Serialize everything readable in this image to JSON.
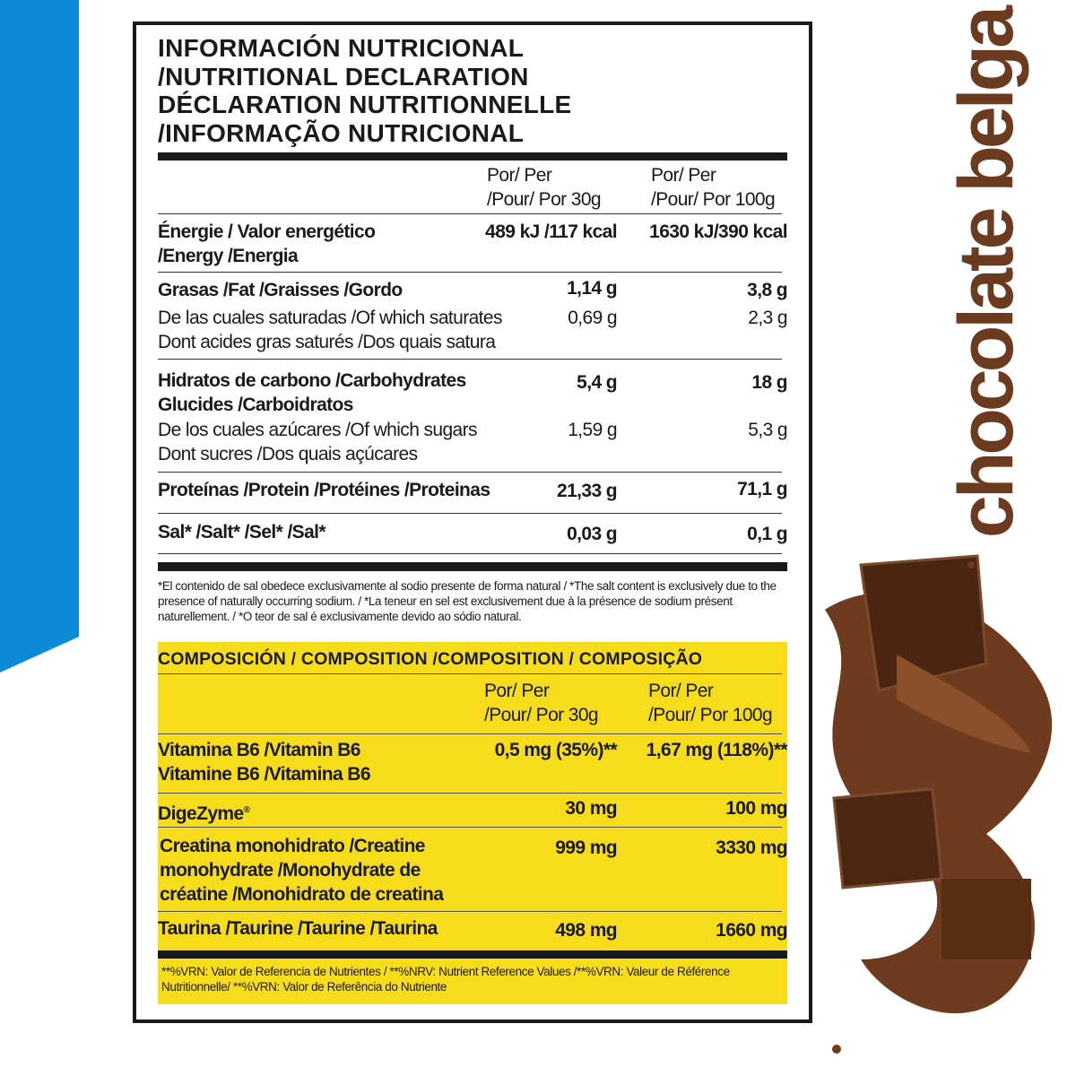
{
  "title_lines": [
    "INFORMACIÓN NUTRICIONAL",
    "/NUTRITIONAL DECLARATION",
    "DÉCLARATION NUTRITIONNELLE",
    "/INFORMAÇÃO NUTRICIONAL"
  ],
  "nutrition": {
    "header": {
      "col1": [
        "Por/ Per",
        "/Pour/ Por 30g"
      ],
      "col2": [
        "Por/ Per",
        "/Pour/ Por 100g"
      ]
    },
    "energy": {
      "label": [
        "Énergie / Valor energético",
        "/Energy /Energia"
      ],
      "v30": "489 kJ /117 kcal",
      "v100": "1630 kJ/390 kcal"
    },
    "fat": {
      "label": "Grasas /Fat /Graisses /Gordo",
      "v30": "1,14 g",
      "v100": "3,8 g"
    },
    "saturates": {
      "label": [
        "De las cuales saturadas /Of which saturates",
        "Dont acides gras saturés /Dos quais satura"
      ],
      "v30": "0,69 g",
      "v100": "2,3 g"
    },
    "carbs": {
      "label": [
        "Hidratos de carbono /Carbohydrates",
        "Glucides /Carboidratos"
      ],
      "v30": "5,4 g",
      "v100": "18 g"
    },
    "sugars": {
      "label": [
        "De los cuales azúcares /Of which sugars",
        "Dont sucres /Dos quais açúcares"
      ],
      "v30": "1,59 g",
      "v100": "5,3 g"
    },
    "protein": {
      "label": "Proteínas /Protein /Protéines /Proteinas",
      "v30": "21,33 g",
      "v100": "71,1 g"
    },
    "salt": {
      "label": "Sal* /Salt* /Sel* /Sal*",
      "v30": "0,03 g",
      "v100": "0,1 g"
    },
    "footnote": "*El contenido de sal obedece exclusivamente al sodio presente de forma natural / *The salt content is exclusively due to the presence of naturally occurring sodium. / *La teneur en sel est exclusivement due à la présence de sodium présent naturellement. / *O teor de sal é exclusivamente devido ao sódio natural."
  },
  "composition": {
    "title": "COMPOSICIÓN / COMPOSITION /COMPOSITION / COMPOSIÇÃO",
    "header": {
      "col1": [
        "Por/ Per",
        "/Pour/ Por 30g"
      ],
      "col2": [
        "Por/ Per",
        "/Pour/ Por 100g"
      ]
    },
    "b6": {
      "label": [
        "Vitamina B6 /Vitamin B6",
        "Vitamine B6 /Vitamina B6"
      ],
      "v30": "0,5 mg (35%)**",
      "v100": "1,67 mg (118%)**"
    },
    "digezyme": {
      "label": "DigeZyme",
      "mark": "®",
      "v30": "30 mg",
      "v100": "100 mg"
    },
    "creatine": {
      "label": [
        "Creatina monohidrato /Creatine",
        "monohydrate /Monohydrate de",
        "créatine /Monohidrato de creatina"
      ],
      "v30": "999 mg",
      "v100": "3330 mg"
    },
    "taurine": {
      "label": "Taurina /Taurine /Taurine /Taurina",
      "v30": "498 mg",
      "v100": "1660 mg"
    },
    "footnote": "**%VRN: Valor de Referencia de Nutrientes / **%NRV: Nutrient Reference Values /**%VRN: Valeur de Référence Nutritionnelle/ **%VRN: Valor de Referência do Nutriente"
  },
  "flavor": "chocolate belga",
  "colors": {
    "blue": "#0a8ad6",
    "yellow": "#f7dc1c",
    "brown": "#6b3a1f"
  }
}
